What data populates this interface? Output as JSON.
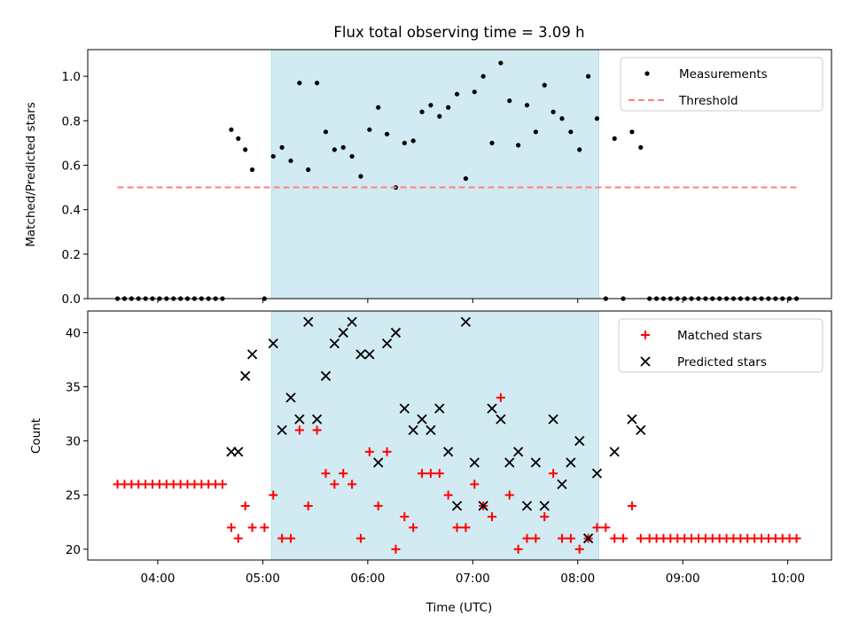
{
  "title": "Flux total observing time = 3.09 h",
  "colors": {
    "measurement": "#000000",
    "threshold": "#ff7f7f",
    "highlight": "#add8e6",
    "matched": "#ff0000",
    "predicted": "#000000"
  },
  "chart_data": [
    {
      "type": "scatter",
      "panel": "top",
      "title": "Flux total observing time = 3.09 h",
      "xlabel": "",
      "ylabel": "Matched/Predicted stars",
      "xlim": [
        "03:20",
        "10:25"
      ],
      "ylim": [
        0,
        1.12
      ],
      "yticks": [
        "0.0",
        "0.2",
        "0.4",
        "0.6",
        "0.8",
        "1.0"
      ],
      "grid": false,
      "legend": "top-right",
      "shaded_interval": [
        "05:05",
        "08:12"
      ],
      "series": [
        {
          "name": "Measurements",
          "marker": "dot",
          "x": [
            "03:37",
            "03:41",
            "03:45",
            "03:49",
            "03:53",
            "03:57",
            "04:01",
            "04:05",
            "04:09",
            "04:13",
            "04:17",
            "04:21",
            "04:25",
            "04:29",
            "04:33",
            "04:37",
            "04:42",
            "04:46",
            "04:50",
            "04:54",
            "05:01",
            "05:06",
            "05:11",
            "05:16",
            "05:21",
            "05:26",
            "05:31",
            "05:36",
            "05:41",
            "05:46",
            "05:51",
            "05:56",
            "06:01",
            "06:06",
            "06:11",
            "06:16",
            "06:21",
            "06:26",
            "06:31",
            "06:36",
            "06:41",
            "06:46",
            "06:51",
            "06:56",
            "07:01",
            "07:06",
            "07:11",
            "07:16",
            "07:21",
            "07:26",
            "07:31",
            "07:36",
            "07:41",
            "07:46",
            "07:51",
            "07:56",
            "08:01",
            "08:06",
            "08:11",
            "08:16",
            "08:21",
            "08:26",
            "08:31",
            "08:36",
            "08:41",
            "08:45",
            "08:49",
            "08:53",
            "08:57",
            "09:01",
            "09:05",
            "09:09",
            "09:13",
            "09:17",
            "09:21",
            "09:25",
            "09:29",
            "09:33",
            "09:37",
            "09:41",
            "09:45",
            "09:49",
            "09:53",
            "09:57",
            "10:01",
            "10:05"
          ],
          "y": [
            0,
            0,
            0,
            0,
            0,
            0,
            0,
            0,
            0,
            0,
            0,
            0,
            0,
            0,
            0,
            0,
            0.76,
            0.72,
            0.67,
            0.58,
            0,
            0.64,
            0.68,
            0.62,
            0.97,
            0.58,
            0.97,
            0.75,
            0.67,
            0.68,
            0.64,
            0.55,
            0.76,
            0.86,
            0.74,
            0.5,
            0.7,
            0.71,
            0.84,
            0.87,
            0.82,
            0.86,
            0.92,
            0.54,
            0.93,
            1.0,
            0.7,
            1.06,
            0.89,
            0.69,
            0.87,
            0.75,
            0.96,
            0.84,
            0.81,
            0.75,
            0.67,
            1.0,
            0.81,
            0,
            0.72,
            0,
            0.75,
            0.68,
            0,
            0,
            0,
            0,
            0,
            0,
            0,
            0,
            0,
            0,
            0,
            0,
            0,
            0,
            0,
            0,
            0,
            0,
            0,
            0,
            0,
            0
          ]
        },
        {
          "name": "Threshold",
          "style": "dashed",
          "x": [
            "03:37",
            "10:05"
          ],
          "y": [
            0.5,
            0.5
          ]
        }
      ]
    },
    {
      "type": "scatter",
      "panel": "bottom",
      "xlabel": "Time (UTC)",
      "ylabel": "Count",
      "xlim": [
        "03:20",
        "10:25"
      ],
      "ylim": [
        19,
        42
      ],
      "xticks": [
        "04:00",
        "05:00",
        "06:00",
        "07:00",
        "08:00",
        "09:00",
        "10:00"
      ],
      "yticks": [
        "20",
        "25",
        "30",
        "35",
        "40"
      ],
      "grid": false,
      "legend": "top-right",
      "shaded_interval": [
        "05:05",
        "08:12"
      ],
      "series": [
        {
          "name": "Matched stars",
          "marker": "plus",
          "x": [
            "03:37",
            "03:41",
            "03:45",
            "03:49",
            "03:53",
            "03:57",
            "04:01",
            "04:05",
            "04:09",
            "04:13",
            "04:17",
            "04:21",
            "04:25",
            "04:29",
            "04:33",
            "04:37",
            "04:42",
            "04:46",
            "04:50",
            "04:54",
            "05:01",
            "05:06",
            "05:11",
            "05:16",
            "05:21",
            "05:26",
            "05:31",
            "05:36",
            "05:41",
            "05:46",
            "05:51",
            "05:56",
            "06:01",
            "06:06",
            "06:11",
            "06:16",
            "06:21",
            "06:26",
            "06:31",
            "06:36",
            "06:41",
            "06:46",
            "06:51",
            "06:56",
            "07:01",
            "07:06",
            "07:11",
            "07:16",
            "07:21",
            "07:26",
            "07:31",
            "07:36",
            "07:41",
            "07:46",
            "07:51",
            "07:56",
            "08:01",
            "08:06",
            "08:11",
            "08:16",
            "08:21",
            "08:26",
            "08:31",
            "08:36",
            "08:41",
            "08:45",
            "08:49",
            "08:53",
            "08:57",
            "09:01",
            "09:05",
            "09:09",
            "09:13",
            "09:17",
            "09:21",
            "09:25",
            "09:29",
            "09:33",
            "09:37",
            "09:41",
            "09:45",
            "09:49",
            "09:53",
            "09:57",
            "10:01",
            "10:05"
          ],
          "y": [
            26,
            26,
            26,
            26,
            26,
            26,
            26,
            26,
            26,
            26,
            26,
            26,
            26,
            26,
            26,
            26,
            22,
            21,
            24,
            22,
            22,
            25,
            21,
            21,
            31,
            24,
            31,
            27,
            26,
            27,
            26,
            21,
            29,
            24,
            29,
            20,
            23,
            22,
            27,
            27,
            27,
            25,
            22,
            22,
            26,
            24,
            23,
            34,
            25,
            20,
            21,
            21,
            23,
            27,
            21,
            21,
            20,
            21,
            22,
            22,
            21,
            21,
            24,
            21,
            21,
            21,
            21,
            21,
            21,
            21,
            21,
            21,
            21,
            21,
            21,
            21,
            21,
            21,
            21,
            21,
            21,
            21,
            21,
            21,
            21,
            21
          ]
        },
        {
          "name": "Predicted stars",
          "marker": "x",
          "x": [
            "04:42",
            "04:46",
            "04:50",
            "04:54",
            "05:06",
            "05:11",
            "05:16",
            "05:21",
            "05:26",
            "05:31",
            "05:36",
            "05:41",
            "05:46",
            "05:51",
            "05:56",
            "06:01",
            "06:06",
            "06:11",
            "06:16",
            "06:21",
            "06:26",
            "06:31",
            "06:36",
            "06:41",
            "06:46",
            "06:51",
            "06:56",
            "07:01",
            "07:06",
            "07:11",
            "07:16",
            "07:21",
            "07:26",
            "07:31",
            "07:36",
            "07:41",
            "07:46",
            "07:51",
            "07:56",
            "08:01",
            "08:06",
            "08:11",
            "08:21",
            "08:31",
            "08:36"
          ],
          "y": [
            29,
            29,
            36,
            38,
            39,
            31,
            34,
            32,
            41,
            32,
            36,
            39,
            40,
            41,
            38,
            38,
            28,
            39,
            40,
            33,
            31,
            32,
            31,
            33,
            29,
            24,
            41,
            28,
            24,
            33,
            32,
            28,
            29,
            24,
            28,
            24,
            32,
            26,
            28,
            30,
            21,
            27,
            29,
            32,
            31
          ]
        }
      ]
    }
  ]
}
